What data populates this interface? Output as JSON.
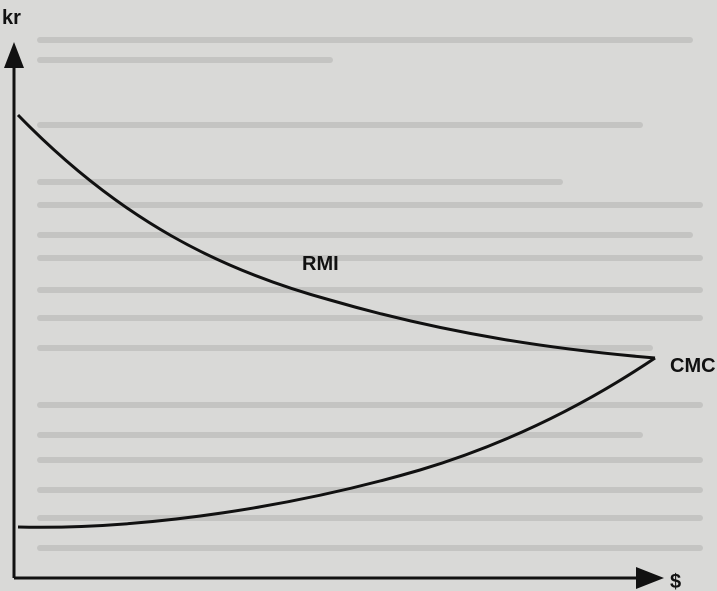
{
  "axes": {
    "y_label": "kr",
    "x_label": "$"
  },
  "curves": [
    {
      "label": "RMI"
    },
    {
      "label": "CMC"
    }
  ]
}
